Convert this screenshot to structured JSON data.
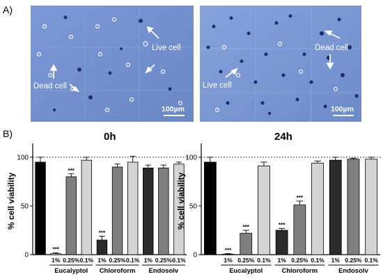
{
  "figure": {
    "panel_a_label": "A)",
    "panel_b_label": "B)"
  },
  "micrographs": [
    {
      "annotations": [
        {
          "key": "live",
          "text": "Live cell"
        },
        {
          "key": "dead",
          "text": "Dead cell"
        }
      ],
      "scale_bar": "100µm"
    },
    {
      "annotations": [
        {
          "key": "dead",
          "text": "Dead cell"
        },
        {
          "key": "live",
          "text": "Live cell"
        }
      ],
      "scale_bar": "100µm"
    }
  ],
  "chart_data": [
    {
      "type": "bar",
      "title": "0h",
      "ylabel": "% cell viability",
      "ylim": [
        0,
        110
      ],
      "yticks": [
        0,
        50,
        100
      ],
      "reference_line": 100,
      "categories": [
        "",
        "1%",
        "0.25%",
        "0.1%",
        "1%",
        "0.25%",
        "0.1%",
        "1%",
        "0.25%",
        "0.1%"
      ],
      "groups": [
        {
          "label": "Eucalyptol",
          "span": [
            1,
            3
          ]
        },
        {
          "label": "Chloroform",
          "span": [
            4,
            6
          ]
        },
        {
          "label": "Endosolv",
          "span": [
            7,
            9
          ]
        }
      ],
      "values": [
        95,
        1,
        80,
        97,
        15,
        90,
        95,
        89,
        89,
        93
      ],
      "errors": [
        5,
        1,
        3,
        3,
        4,
        3,
        6,
        3,
        3,
        2
      ],
      "significance": [
        "",
        "***",
        "***",
        "",
        "***",
        "",
        "",
        "",
        "",
        ""
      ],
      "colors": [
        "#000000",
        "#ffffff",
        "#7f7f7f",
        "#d4d4d4",
        "#2b2b2b",
        "#7f7f7f",
        "#d4d4d4",
        "#2b2b2b",
        "#7f7f7f",
        "#d4d4d4"
      ]
    },
    {
      "type": "bar",
      "title": "24h",
      "ylabel": "% cell viability",
      "ylim": [
        0,
        110
      ],
      "yticks": [
        0,
        50,
        100
      ],
      "reference_line": 100,
      "categories": [
        "",
        "1%",
        "0.25%",
        "0.1%",
        "1%",
        "0.25%",
        "0.1%",
        "1%",
        "0.25%",
        "0.1%"
      ],
      "groups": [
        {
          "label": "Eucalyptol",
          "span": [
            1,
            3
          ]
        },
        {
          "label": "Chloroform",
          "span": [
            4,
            6
          ]
        },
        {
          "label": "Endosolv",
          "span": [
            7,
            9
          ]
        }
      ],
      "values": [
        95,
        0.5,
        22,
        91,
        25,
        51,
        94,
        97,
        98,
        98
      ],
      "errors": [
        5,
        0.5,
        3,
        4,
        2,
        4,
        2,
        3,
        1,
        2
      ],
      "significance": [
        "",
        "***",
        "***",
        "",
        "***",
        "***",
        "",
        "",
        "",
        ""
      ],
      "colors": [
        "#000000",
        "#ffffff",
        "#7f7f7f",
        "#d4d4d4",
        "#2b2b2b",
        "#7f7f7f",
        "#d4d4d4",
        "#2b2b2b",
        "#7f7f7f",
        "#d4d4d4"
      ]
    }
  ]
}
